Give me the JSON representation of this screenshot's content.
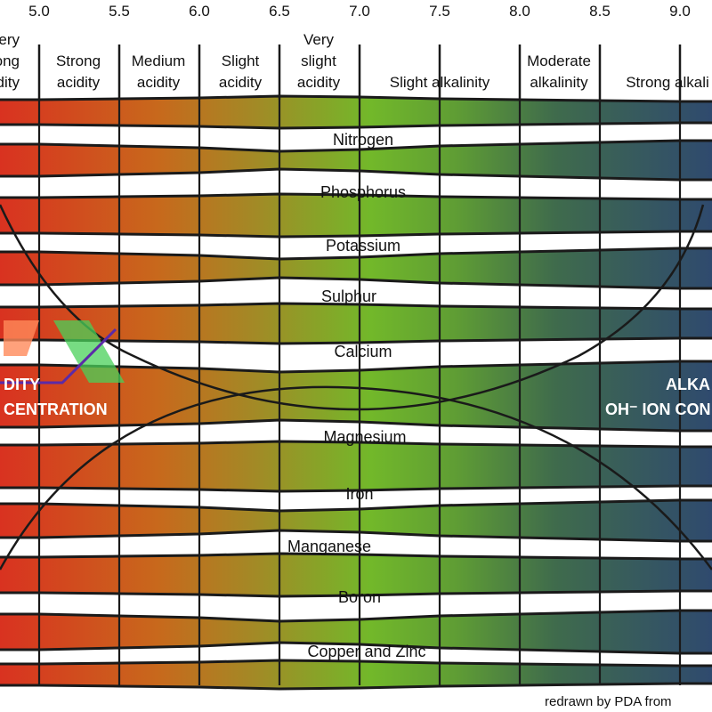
{
  "ph_ticks": [
    "5.0",
    "5.5",
    "6.0",
    "6.5",
    "7.0",
    "7.5",
    "8.0",
    "8.5",
    "9.0"
  ],
  "categories": [
    {
      "lines": [
        "ery",
        "ong",
        "idity"
      ]
    },
    {
      "lines": [
        "Strong",
        "acidity"
      ]
    },
    {
      "lines": [
        "Medium",
        "acidity"
      ]
    },
    {
      "lines": [
        "Slight",
        "acidity"
      ]
    },
    {
      "lines": [
        "Very",
        "slight",
        "acidity"
      ]
    },
    {
      "lines": [
        "Slight alkalinity"
      ]
    },
    {
      "lines": [
        "Moderate",
        "alkalinity"
      ]
    },
    {
      "lines": [
        "Strong alkali"
      ]
    }
  ],
  "nutrients": [
    "Nitrogen",
    "Phosphorus",
    "Potassium",
    "Sulphur",
    "Calcium",
    "Magnesium",
    "Iron",
    "Manganese",
    "Boron",
    "Copper and Zinc"
  ],
  "acidity_label": [
    "DITY",
    "CENTRATION"
  ],
  "alkalinity_label": [
    "ALKA",
    "OH⁻ ION CON"
  ],
  "credit": "redrawn by PDA from",
  "colors": {
    "acid": "#d93220",
    "acid_mid": "#c8681c",
    "neutral": "#72b82a",
    "alkaline": "#2f4a6e",
    "outline": "#1a1a1a"
  }
}
